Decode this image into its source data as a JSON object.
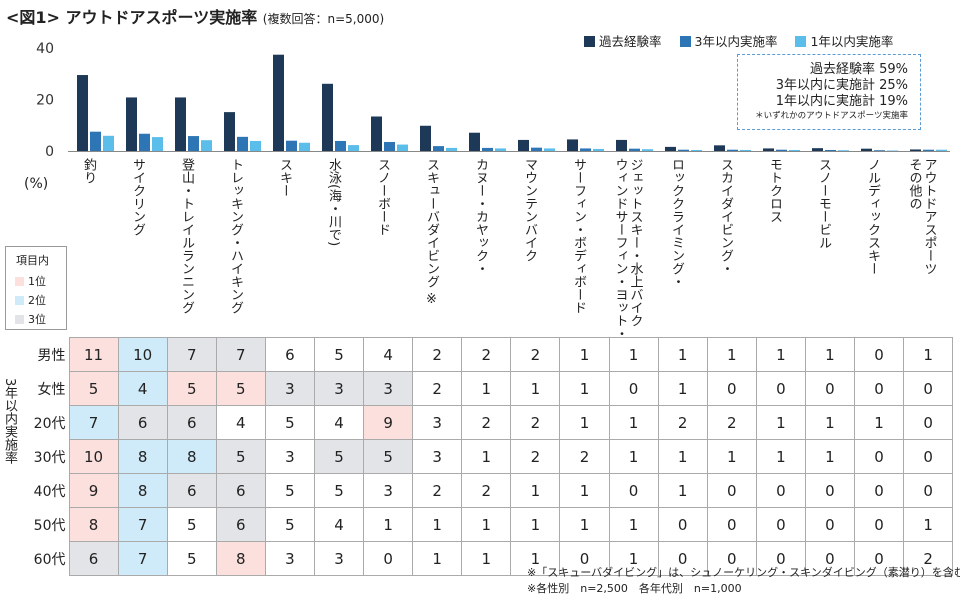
{
  "title": {
    "main": "<図1> アウトドアスポーツ実施率",
    "sub": "(複数回答：n=5,000)"
  },
  "legend": [
    {
      "label": "過去経験率",
      "color": "#1d3957"
    },
    {
      "label": "3年以内実施率",
      "color": "#2e75b6"
    },
    {
      "label": "1年以内実施率",
      "color": "#5bbde9"
    }
  ],
  "summary": {
    "lines": [
      "過去経験率  59%",
      "3年以内に実施計  25%",
      "1年以内に実施計  19%"
    ],
    "note": "＊いずれかのアウトドアスポーツ実施率"
  },
  "chart_data": {
    "type": "bar",
    "ylabel": "(%)",
    "ylim": [
      0,
      40
    ],
    "yticks": [
      "0",
      "20",
      "40"
    ],
    "categories": [
      "釣り",
      "サイクリング",
      "登山・トレイルランニング",
      "トレッキング・ハイキング",
      "スキー",
      "水泳(海・川で)",
      "スノーボード",
      "スキューバダイビング ※",
      "カヌー・カヤック・",
      "マウンテンバイク",
      "サーフィン・ボディボード",
      "ジェットスキー・水上バイク",
      "ロッククライミング・",
      "スカイダイビング・",
      "モトクロス",
      "スノーモービル",
      "ノルディックスキー",
      "その他のアウトドアスポーツ"
    ],
    "category_lines": [
      [
        "釣り"
      ],
      [
        "サイクリング"
      ],
      [
        "登山・トレイルランニング"
      ],
      [
        "トレッキング・ハイキング"
      ],
      [
        "スキー"
      ],
      [
        "水泳(海・川で)"
      ],
      [
        "スノーボード"
      ],
      [
        "スキューバダイビング ※"
      ],
      [
        "カヌー・カヤック・"
      ],
      [
        "マウンテンバイク"
      ],
      [
        "サーフィン・ボディボード"
      ],
      [
        "ジェットスキー・水上バイク",
        "ウィンドサーフィン・ヨット・"
      ],
      [
        "ロッククライミング・"
      ],
      [
        "スカイダイビング・"
      ],
      [
        "モトクロス"
      ],
      [
        "スノーモービル"
      ],
      [
        "ノルディックスキー"
      ],
      [
        "アウトドアスポーツ",
        "その他の"
      ]
    ],
    "series": [
      {
        "name": "過去経験率",
        "values": [
          29.5,
          20.8,
          20.8,
          15.1,
          37.4,
          26.1,
          13.4,
          9.8,
          7.1,
          4.3,
          4.5,
          4.3,
          1.6,
          2.2,
          1.0,
          1.1,
          0.9,
          0.6
        ]
      },
      {
        "name": "3年以内実施率",
        "values": [
          7.5,
          6.7,
          5.8,
          5.5,
          4.0,
          3.9,
          3.5,
          1.9,
          1.2,
          1.3,
          1.0,
          0.9,
          0.5,
          0.5,
          0.5,
          0.4,
          0.3,
          0.5
        ]
      },
      {
        "name": "1年以内実施率",
        "values": [
          5.9,
          5.4,
          4.2,
          3.9,
          3.2,
          2.3,
          2.5,
          1.2,
          1.0,
          1.0,
          0.8,
          0.7,
          0.4,
          0.4,
          0.4,
          0.3,
          0.2,
          0.5
        ]
      }
    ]
  },
  "key": {
    "title": "項目内",
    "items": [
      {
        "label": "1位",
        "color": "#fbe0dd"
      },
      {
        "label": "2位",
        "color": "#cfeaf8"
      },
      {
        "label": "3位",
        "color": "#e2e4e7"
      }
    ]
  },
  "table": {
    "side_label": "3年以内実施率",
    "rows": [
      {
        "label": "男性",
        "values": [
          11,
          10,
          7,
          7,
          6,
          5,
          4,
          2,
          2,
          2,
          1,
          1,
          1,
          1,
          1,
          1,
          0,
          1
        ],
        "rank": [
          1,
          2,
          3,
          3,
          0,
          0,
          0,
          0,
          0,
          0,
          0,
          0,
          0,
          0,
          0,
          0,
          0,
          0
        ]
      },
      {
        "label": "女性",
        "values": [
          5,
          4,
          5,
          5,
          3,
          3,
          3,
          2,
          1,
          1,
          1,
          0,
          1,
          0,
          0,
          0,
          0,
          0
        ],
        "rank": [
          1,
          2,
          1,
          1,
          3,
          3,
          3,
          0,
          0,
          0,
          0,
          0,
          0,
          0,
          0,
          0,
          0,
          0
        ]
      },
      {
        "label": "20代",
        "values": [
          7,
          6,
          6,
          4,
          5,
          4,
          9,
          3,
          2,
          2,
          1,
          1,
          2,
          2,
          1,
          1,
          1,
          0
        ],
        "rank": [
          2,
          3,
          3,
          0,
          0,
          0,
          1,
          0,
          0,
          0,
          0,
          0,
          0,
          0,
          0,
          0,
          0,
          0
        ]
      },
      {
        "label": "30代",
        "values": [
          10,
          8,
          8,
          5,
          3,
          5,
          5,
          3,
          1,
          2,
          2,
          1,
          1,
          1,
          1,
          1,
          0,
          0
        ],
        "rank": [
          1,
          2,
          2,
          3,
          0,
          3,
          3,
          0,
          0,
          0,
          0,
          0,
          0,
          0,
          0,
          0,
          0,
          0
        ]
      },
      {
        "label": "40代",
        "values": [
          9,
          8,
          6,
          6,
          5,
          5,
          3,
          2,
          2,
          1,
          1,
          0,
          1,
          0,
          0,
          0,
          0,
          0
        ],
        "rank": [
          1,
          2,
          3,
          3,
          0,
          0,
          0,
          0,
          0,
          0,
          0,
          0,
          0,
          0,
          0,
          0,
          0,
          0
        ]
      },
      {
        "label": "50代",
        "values": [
          8,
          7,
          5,
          6,
          5,
          4,
          1,
          1,
          1,
          1,
          1,
          1,
          0,
          0,
          0,
          0,
          0,
          1
        ],
        "rank": [
          1,
          2,
          0,
          3,
          0,
          0,
          0,
          0,
          0,
          0,
          0,
          0,
          0,
          0,
          0,
          0,
          0,
          0
        ]
      },
      {
        "label": "60代",
        "values": [
          6,
          7,
          5,
          8,
          3,
          3,
          0,
          1,
          1,
          1,
          0,
          1,
          0,
          0,
          0,
          0,
          0,
          2
        ],
        "rank": [
          3,
          2,
          0,
          1,
          0,
          0,
          0,
          0,
          0,
          0,
          0,
          0,
          0,
          0,
          0,
          0,
          0,
          0
        ]
      }
    ]
  },
  "notes": [
    "※「スキューバダイビング」は、シュノーケリング・スキンダイビング（素潜り）を含む",
    "※各性別　n=2,500　各年代別　n=1,000"
  ]
}
